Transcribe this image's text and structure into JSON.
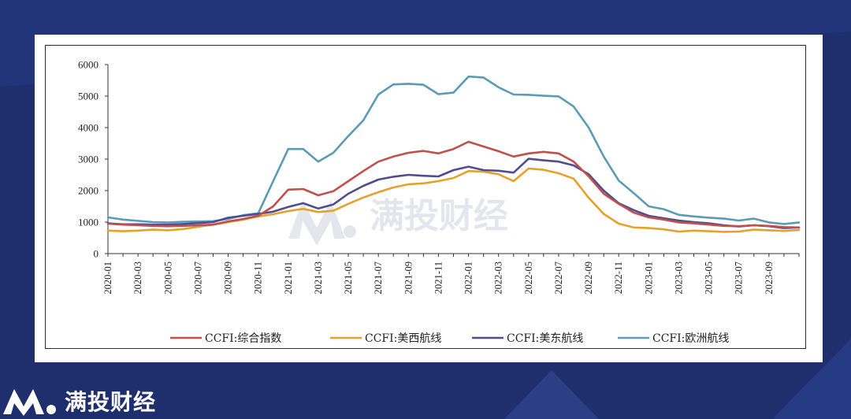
{
  "brand": {
    "name": "满投财经",
    "icon": "brand-m-logo-icon"
  },
  "watermark": {
    "text": "满投财经"
  },
  "chart_data": {
    "type": "line",
    "title": "",
    "xlabel": "",
    "ylabel": "",
    "ylim": [
      0,
      6000
    ],
    "yticks": [
      0,
      1000,
      2000,
      3000,
      4000,
      5000,
      6000
    ],
    "xtick_labels": [
      "2020-01",
      "2020-03",
      "2020-05",
      "2020-07",
      "2020-09",
      "2020-11",
      "2021-01",
      "2021-03",
      "2021-05",
      "2021-07",
      "2021-09",
      "2021-11",
      "2022-01",
      "2022-03",
      "2022-05",
      "2022-07",
      "2022-09",
      "2022-11",
      "2023-01",
      "2023-03",
      "2023-05",
      "2023-07",
      "2023-09"
    ],
    "x": [
      "2020-01",
      "2020-02",
      "2020-03",
      "2020-04",
      "2020-05",
      "2020-06",
      "2020-07",
      "2020-08",
      "2020-09",
      "2020-10",
      "2020-11",
      "2020-12",
      "2021-01",
      "2021-02",
      "2021-03",
      "2021-04",
      "2021-05",
      "2021-06",
      "2021-07",
      "2021-08",
      "2021-09",
      "2021-10",
      "2021-11",
      "2021-12",
      "2022-01",
      "2022-02",
      "2022-03",
      "2022-04",
      "2022-05",
      "2022-06",
      "2022-07",
      "2022-08",
      "2022-09",
      "2022-10",
      "2022-11",
      "2022-12",
      "2023-01",
      "2023-02",
      "2023-03",
      "2023-04",
      "2023-05",
      "2023-06",
      "2023-07",
      "2023-08",
      "2023-09",
      "2023-10",
      "2023-11"
    ],
    "legend_position": "bottom",
    "grid": false,
    "series": [
      {
        "name": "CCFI:综合指数",
        "color": "#c0504d",
        "values": [
          950,
          920,
          900,
          880,
          870,
          880,
          900,
          920,
          1020,
          1100,
          1200,
          1500,
          2030,
          2050,
          1850,
          1980,
          2300,
          2620,
          2920,
          3080,
          3200,
          3260,
          3180,
          3320,
          3550,
          3400,
          3250,
          3080,
          3180,
          3230,
          3180,
          2920,
          2450,
          1900,
          1580,
          1300,
          1150,
          1080,
          990,
          960,
          920,
          880,
          870,
          900,
          880,
          840,
          830
        ]
      },
      {
        "name": "CCFI:美西航线",
        "color": "#e6a12b",
        "values": [
          730,
          710,
          730,
          760,
          740,
          780,
          850,
          920,
          1000,
          1080,
          1180,
          1250,
          1350,
          1420,
          1320,
          1360,
          1580,
          1780,
          1950,
          2100,
          2200,
          2230,
          2300,
          2400,
          2620,
          2600,
          2520,
          2300,
          2700,
          2660,
          2550,
          2380,
          1770,
          1260,
          950,
          830,
          810,
          770,
          700,
          730,
          710,
          690,
          700,
          760,
          740,
          720,
          750
        ]
      },
      {
        "name": "CCFI:美东航线",
        "color": "#4f4c8f",
        "values": [
          960,
          930,
          930,
          920,
          920,
          940,
          970,
          1000,
          1140,
          1200,
          1260,
          1330,
          1480,
          1600,
          1430,
          1560,
          1900,
          2150,
          2350,
          2440,
          2500,
          2470,
          2450,
          2650,
          2760,
          2650,
          2630,
          2570,
          3010,
          2960,
          2920,
          2800,
          2520,
          2000,
          1600,
          1380,
          1200,
          1120,
          1050,
          1000,
          960,
          900,
          860,
          900,
          870,
          810,
          830
        ]
      },
      {
        "name": "CCFI:欧洲航线",
        "color": "#5b9bb5",
        "values": [
          1150,
          1080,
          1040,
          1000,
          990,
          1010,
          1020,
          1030,
          1100,
          1220,
          1280,
          2300,
          3320,
          3320,
          2920,
          3200,
          3730,
          4230,
          5050,
          5370,
          5390,
          5360,
          5060,
          5110,
          5620,
          5590,
          5280,
          5050,
          5040,
          5010,
          4990,
          4670,
          4000,
          3080,
          2320,
          1920,
          1500,
          1410,
          1230,
          1180,
          1140,
          1110,
          1050,
          1110,
          990,
          940,
          990
        ]
      }
    ]
  }
}
